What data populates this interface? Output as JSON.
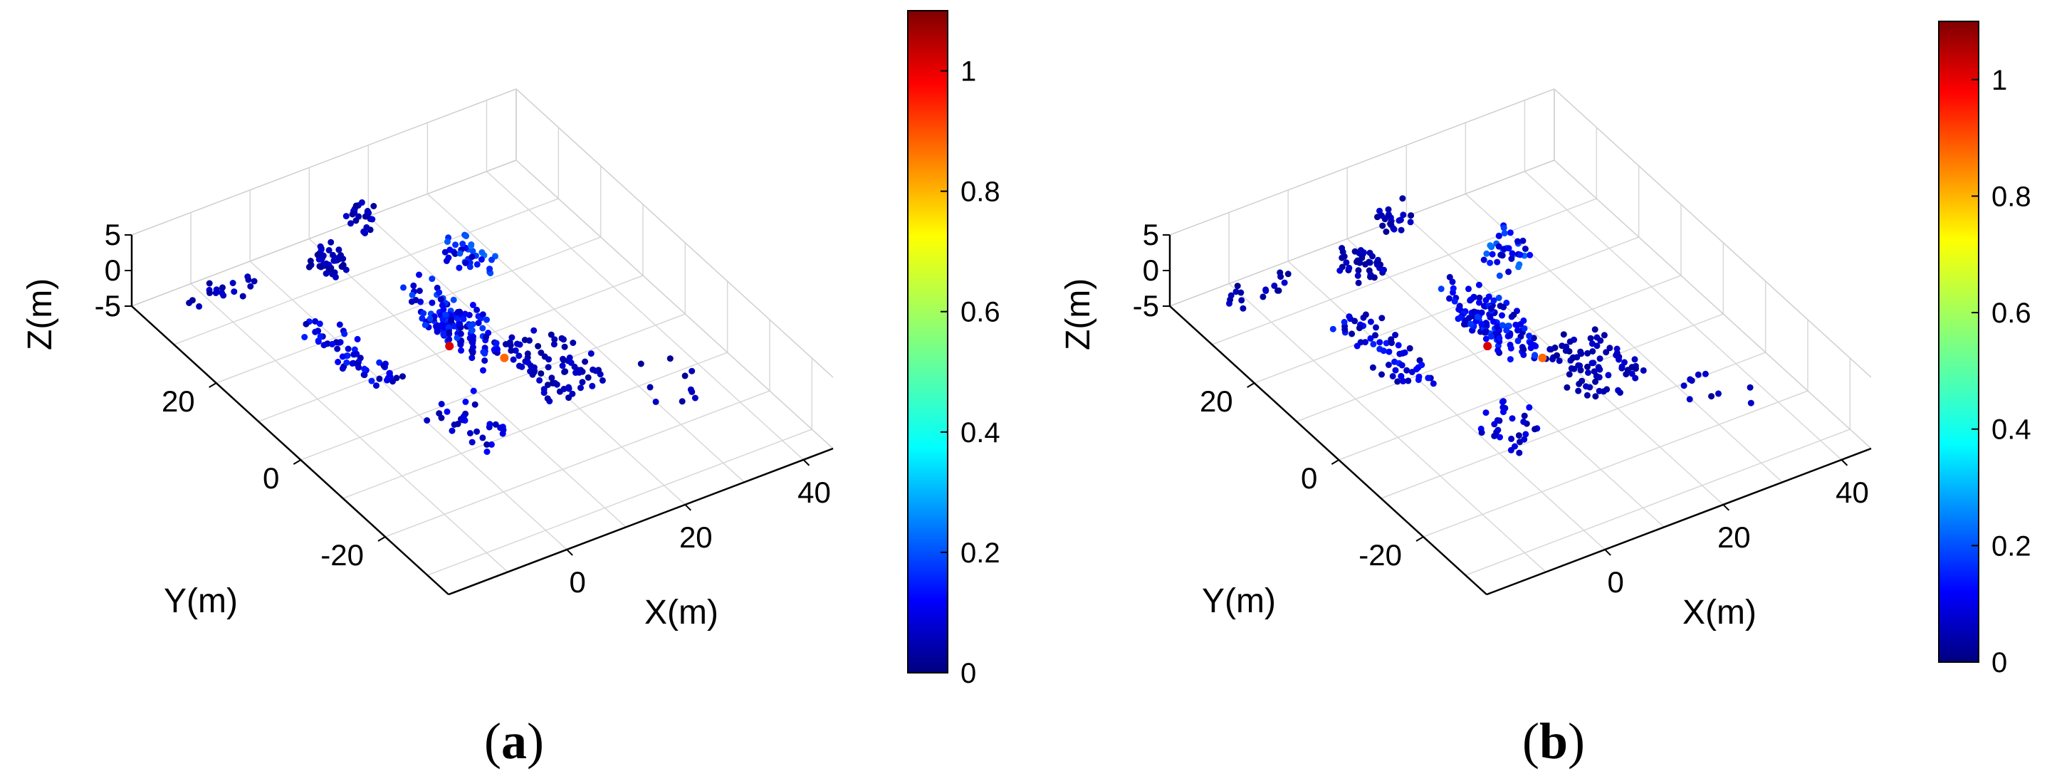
{
  "figure": {
    "panels": [
      {
        "label": "(a)",
        "letter": "a",
        "chart_data": {
          "type": "scatter",
          "projection": "3d",
          "xlabel": "X(m)",
          "ylabel": "Y(m)",
          "zlabel": "Z(m)",
          "xlim": [
            -20,
            45
          ],
          "ylim": [
            -35,
            40
          ],
          "zlim": [
            -5,
            5
          ],
          "xticks": [
            "0",
            "20",
            "40"
          ],
          "yticks": [
            "-20",
            "0",
            "20"
          ],
          "zticks": [
            "-5",
            "0",
            "5"
          ],
          "grid": true,
          "colorbar": {
            "colormap": "jet",
            "range": [
              0,
              1.1
            ],
            "ticks": [
              "0",
              "0.2",
              "0.4",
              "0.6",
              "0.8",
              "1"
            ]
          },
          "highlight_points": [
            {
              "x": 8,
              "y": 4,
              "z": 0,
              "c": 1.0
            },
            {
              "x": 13,
              "y": -2,
              "z": 0,
              "c": 0.85
            }
          ]
        }
      },
      {
        "label": "(b)",
        "letter": "b",
        "chart_data": {
          "type": "scatter",
          "projection": "3d",
          "xlabel": "X(m)",
          "ylabel": "Y(m)",
          "zlabel": "Z(m)",
          "xlim": [
            -20,
            45
          ],
          "ylim": [
            -35,
            40
          ],
          "zlim": [
            -5,
            5
          ],
          "xticks": [
            "0",
            "20",
            "40"
          ],
          "yticks": [
            "-20",
            "0",
            "20"
          ],
          "zticks": [
            "-5",
            "0",
            "5"
          ],
          "grid": true,
          "colorbar": {
            "colormap": "jet",
            "range": [
              0,
              1.1
            ],
            "ticks": [
              "0",
              "0.2",
              "0.4",
              "0.6",
              "0.8",
              "1"
            ]
          },
          "highlight_points": [
            {
              "x": 8,
              "y": 4,
              "z": 0,
              "c": 1.0
            },
            {
              "x": 13,
              "y": -2,
              "z": 0,
              "c": 0.85
            }
          ]
        }
      }
    ]
  }
}
